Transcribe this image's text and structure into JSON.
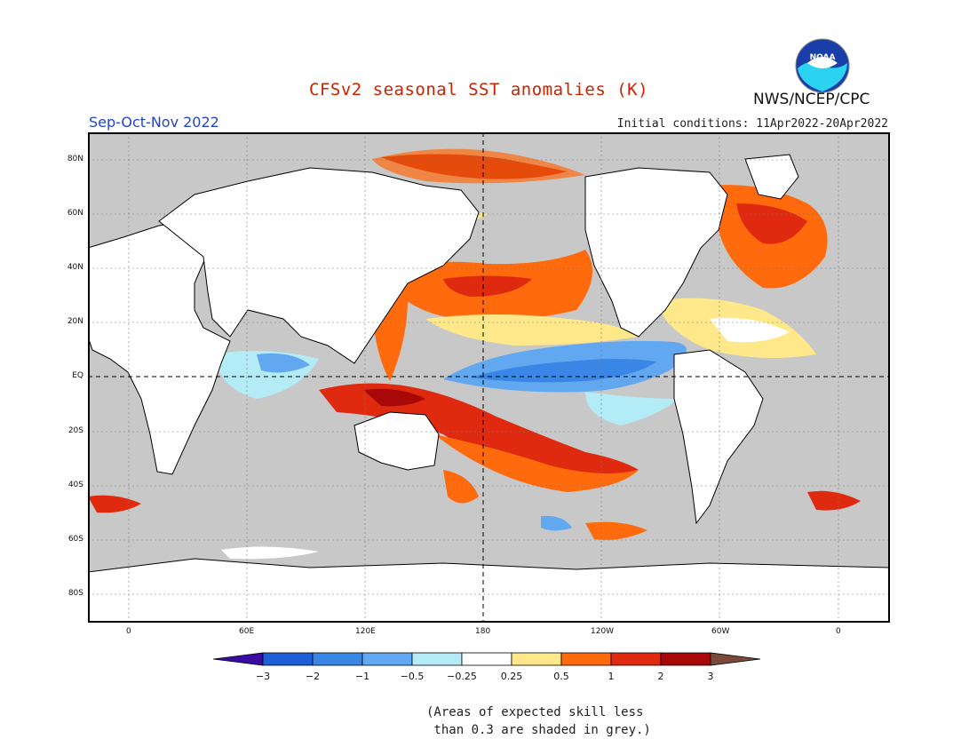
{
  "title": "CFSv2 seasonal SST anomalies (K)",
  "season": "Sep-Oct-Nov 2022",
  "initial_conditions": "Initial conditions: 11Apr2022-20Apr2022",
  "agency": "NWS/NCEP/CPC",
  "logo_text": "NOAA",
  "note": {
    "line1": "(Areas of expected skill less",
    "line2": " than 0.3 are shaded in grey.)"
  },
  "map": {
    "lat_labels": [
      "80N",
      "60N",
      "40N",
      "20N",
      "EQ",
      "20S",
      "40S",
      "60S",
      "80S"
    ],
    "lon_labels": [
      "0",
      "60E",
      "120E",
      "180",
      "120W",
      "60W",
      "0"
    ],
    "land_color": "#ffffff",
    "ocean_low_skill_color": "#c8c8c8"
  },
  "colorbar": {
    "tick_labels": [
      "-3",
      "-2",
      "-1",
      "-0.5",
      "-0.25",
      "0.25",
      "0.5",
      "1",
      "2",
      "3"
    ],
    "colors": [
      "#3a0ca3",
      "#1f5fd6",
      "#3a86e6",
      "#62a8f0",
      "#b3ecf7",
      "#ffffff",
      "#ffe88a",
      "#ff6a0d",
      "#e02a10",
      "#a80808",
      "#7a4a3a"
    ]
  }
}
